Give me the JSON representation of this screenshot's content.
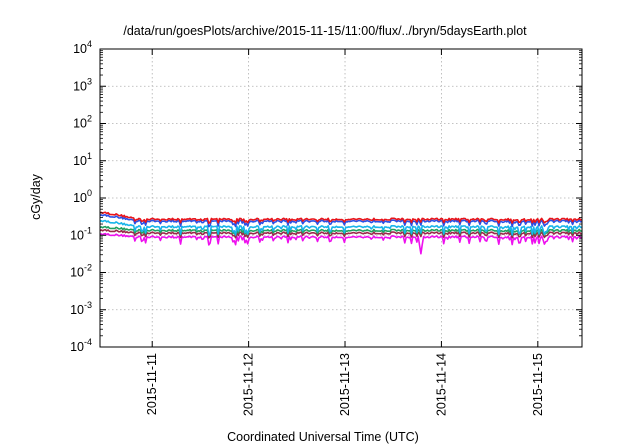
{
  "chart_data": {
    "type": "line",
    "title": "/data/run/goesPlots/archive/2015-11-15/11:00/flux/../bryn/5daysEarth.plot",
    "xlabel": "Coordinated Universal Time (UTC)",
    "ylabel": "cGy/day",
    "y_scale": "log",
    "ylim": [
      0.0001,
      10000
    ],
    "y_ticks": [
      {
        "value": 10000,
        "base": "10",
        "exp": "4"
      },
      {
        "value": 1000,
        "base": "10",
        "exp": "3"
      },
      {
        "value": 100,
        "base": "10",
        "exp": "2"
      },
      {
        "value": 10,
        "base": "10",
        "exp": "1"
      },
      {
        "value": 1,
        "base": "10",
        "exp": "0"
      },
      {
        "value": 0.1,
        "base": "10",
        "exp": "-1"
      },
      {
        "value": 0.01,
        "base": "10",
        "exp": "-2"
      },
      {
        "value": 0.001,
        "base": "10",
        "exp": "-3"
      },
      {
        "value": 0.0001,
        "base": "10",
        "exp": "-4"
      }
    ],
    "xlim": [
      "2015-11-10T11:00",
      "2015-11-15T11:00"
    ],
    "x_ticks": [
      "2015-11-11",
      "2015-11-12",
      "2015-11-13",
      "2015-11-14",
      "2015-11-15"
    ],
    "grid": true,
    "series": [
      {
        "color": "#e8141a",
        "level_start": 0.42,
        "level": 0.27,
        "dip_level": 0.21
      },
      {
        "color": "#2a50e6",
        "level_start": 0.36,
        "level": 0.24,
        "dip_level": 0.17
      },
      {
        "color": "#18b4ea",
        "level_start": 0.25,
        "level": 0.17,
        "dip_level": 0.1
      },
      {
        "color": "#20a060",
        "level_start": 0.17,
        "level": 0.135,
        "dip_level": 0.1
      },
      {
        "color": "#9a2a4a",
        "level_start": 0.14,
        "level": 0.115,
        "dip_level": 0.085
      },
      {
        "color": "#ee10ee",
        "level_start": 0.11,
        "level": 0.09,
        "dip_level": 0.055
      }
    ],
    "min_annotation": {
      "series": 5,
      "x": "2015-11-13T19:00",
      "y": 0.032
    }
  }
}
